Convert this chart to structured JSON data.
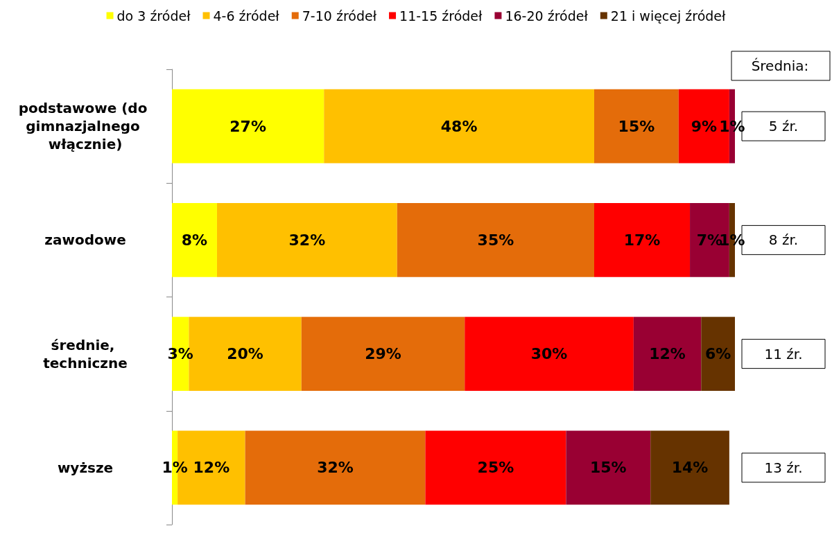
{
  "chart_data": {
    "type": "bar",
    "orientation": "horizontal",
    "stacked": true,
    "legend": "top",
    "xlim": [
      0,
      100
    ],
    "categories": [
      "podstawowe (do gimnazjalnego włącznie)",
      "zawodowe",
      "średnie, techniczne",
      "wyższe"
    ],
    "series": [
      {
        "name": "do 3 źródeł",
        "color": "#ffff00",
        "values": [
          27,
          8,
          3,
          1
        ],
        "value_labels": [
          "27%",
          "8%",
          "3%",
          "1%"
        ]
      },
      {
        "name": "4-6 źródeł",
        "color": "#ffc000",
        "values": [
          48,
          32,
          20,
          12
        ],
        "value_labels": [
          "48%",
          "32%",
          "20%",
          "12%"
        ]
      },
      {
        "name": "7-10 źródeł",
        "color": "#e46c0a",
        "values": [
          15,
          35,
          29,
          32
        ],
        "value_labels": [
          "15%",
          "35%",
          "29%",
          "32%"
        ]
      },
      {
        "name": "11-15 źródeł",
        "color": "#ff0000",
        "values": [
          9,
          17,
          30,
          25
        ],
        "value_labels": [
          "9%",
          "17%",
          "30%",
          "25%"
        ]
      },
      {
        "name": "16-20 źródeł",
        "color": "#990033",
        "values": [
          1,
          7,
          12,
          15
        ],
        "value_labels": [
          "1%",
          "7%",
          "12%",
          "15%"
        ]
      },
      {
        "name": "21 i więcej źródeł",
        "color": "#663300",
        "values": [
          null,
          1,
          6,
          14
        ],
        "value_labels": [
          null,
          "1%",
          "6%",
          "14%"
        ]
      }
    ],
    "annotations": [
      "Średnia:",
      "5 źr.",
      "8 źr.",
      "11 źr.",
      "13 źr."
    ]
  }
}
